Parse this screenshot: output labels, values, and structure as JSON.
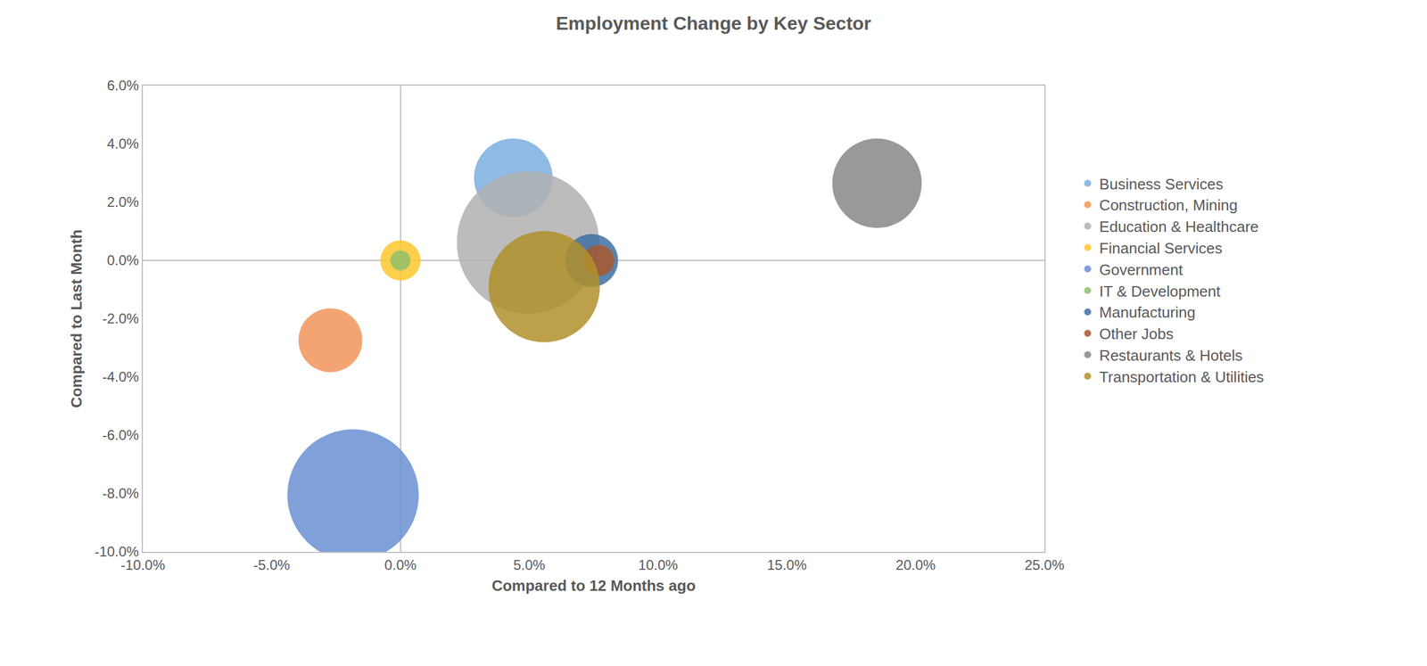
{
  "chart_data": {
    "type": "bubble",
    "title": "Employment Change by Key Sector",
    "x_label": "Compared to 12 Months ago",
    "y_label": "Compared to Last Month",
    "xlim": [
      -10,
      25
    ],
    "ylim": [
      -10,
      6
    ],
    "xticks": [
      {
        "value": -10,
        "label": "-10.0%"
      },
      {
        "value": -5,
        "label": "-5.0%"
      },
      {
        "value": 0,
        "label": "0.0%"
      },
      {
        "value": 5,
        "label": "5.0%"
      },
      {
        "value": 10,
        "label": "10.0%"
      },
      {
        "value": 15,
        "label": "15.0%"
      },
      {
        "value": 20,
        "label": "20.0%"
      },
      {
        "value": 25,
        "label": "25.0%"
      }
    ],
    "yticks": [
      {
        "value": -10,
        "label": "-10.0%"
      },
      {
        "value": -8,
        "label": "-8.0%"
      },
      {
        "value": -6,
        "label": "-6.0%"
      },
      {
        "value": -4,
        "label": "-4.0%"
      },
      {
        "value": -2,
        "label": "-2.0%"
      },
      {
        "value": 0,
        "label": "0.0%"
      },
      {
        "value": 2,
        "label": "2.0%"
      },
      {
        "value": 4,
        "label": "4.0%"
      },
      {
        "value": 6,
        "label": "6.0%"
      }
    ],
    "grid": false,
    "legend": "right",
    "series": [
      {
        "name": "Business Services",
        "color": "#7aaee0",
        "x": [
          4.38
        ],
        "values": [
          2.84
        ],
        "sizes": [
          1850
        ]
      },
      {
        "name": "Construction, Mining",
        "color": "#f0955a",
        "x": [
          -2.72
        ],
        "values": [
          -2.74
        ],
        "sizes": [
          1225
        ]
      },
      {
        "name": "Education & Healthcare",
        "color": "#b0b0b0",
        "x": [
          4.95
        ],
        "values": [
          0.62
        ],
        "sizes": [
          6080
        ]
      },
      {
        "name": "Financial Services",
        "color": "#fdc82c",
        "x": [
          0
        ],
        "values": [
          0
        ],
        "sizes": [
          484
        ]
      },
      {
        "name": "Government",
        "color": "#6a8fd4",
        "x": [
          -1.84
        ],
        "values": [
          -8.05
        ],
        "sizes": [
          5184
        ]
      },
      {
        "name": "IT & Development",
        "color": "#8fc06a",
        "x": [
          0
        ],
        "values": [
          0
        ],
        "sizes": [
          121
        ]
      },
      {
        "name": "Manufacturing",
        "color": "#3e6ea3",
        "x": [
          7.42
        ],
        "values": [
          0
        ],
        "sizes": [
          841
        ]
      },
      {
        "name": "Other Jobs",
        "color": "#a8582e",
        "x": [
          7.7
        ],
        "values": [
          0
        ],
        "sizes": [
          289
        ]
      },
      {
        "name": "Restaurants & Hotels",
        "color": "#878787",
        "x": [
          18.5
        ],
        "values": [
          2.65
        ],
        "sizes": [
          2400
        ]
      },
      {
        "name": "Transportation & Utilities",
        "color": "#b08f2a",
        "x": [
          5.58
        ],
        "values": [
          -0.9
        ],
        "sizes": [
          3720
        ]
      }
    ]
  }
}
